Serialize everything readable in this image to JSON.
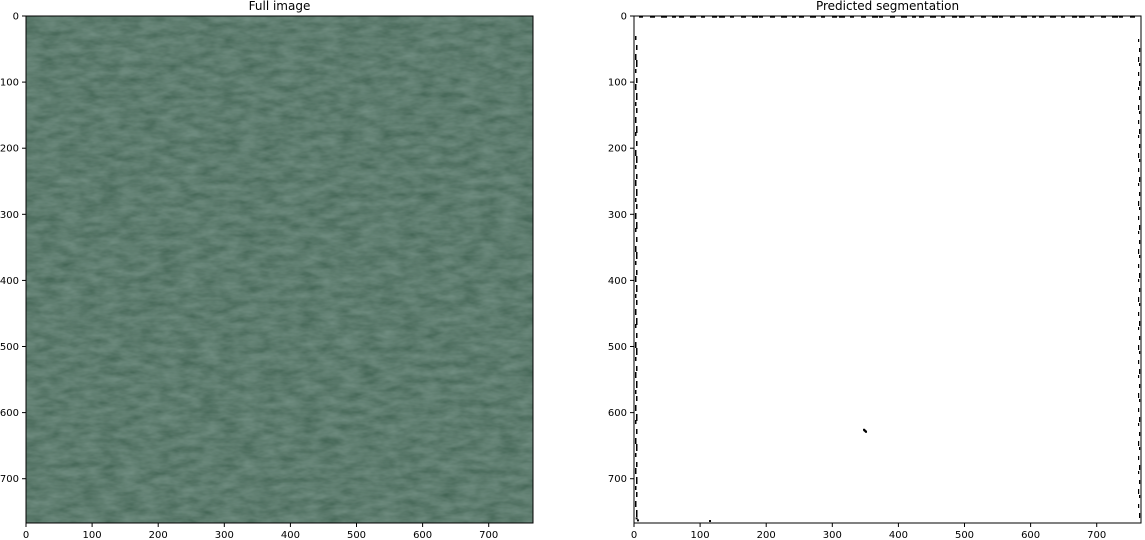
{
  "chart_data": [
    {
      "type": "image",
      "title": "Full image",
      "xlabel": "",
      "ylabel": "",
      "xlim": [
        0,
        767
      ],
      "ylim": [
        767,
        0
      ],
      "x_ticks": [
        0,
        100,
        200,
        300,
        400,
        500,
        600,
        700
      ],
      "y_ticks": [
        0,
        100,
        200,
        300,
        400,
        500,
        600,
        700
      ],
      "content": "aerial image of dark green water surface",
      "colors": {
        "base": "#3f6251",
        "light": "#4c705e",
        "dark": "#36584a"
      }
    },
    {
      "type": "image",
      "title": "Predicted segmentation",
      "xlabel": "",
      "ylabel": "",
      "xlim": [
        0,
        767
      ],
      "ylim": [
        767,
        0
      ],
      "x_ticks": [
        0,
        100,
        200,
        300,
        400,
        500,
        600,
        700
      ],
      "y_ticks": [
        0,
        100,
        200,
        300,
        400,
        500,
        600,
        700
      ],
      "content": "binary mask, almost entirely white",
      "colors": {
        "background": "#ffffff",
        "mask": "#000000"
      },
      "mask_points": [
        [
          348,
          626
        ],
        [
          349,
          627
        ],
        [
          350,
          628
        ],
        [
          351,
          629
        ],
        [
          115,
          764
        ],
        [
          4,
          760
        ],
        [
          6,
          763
        ]
      ]
    }
  ]
}
